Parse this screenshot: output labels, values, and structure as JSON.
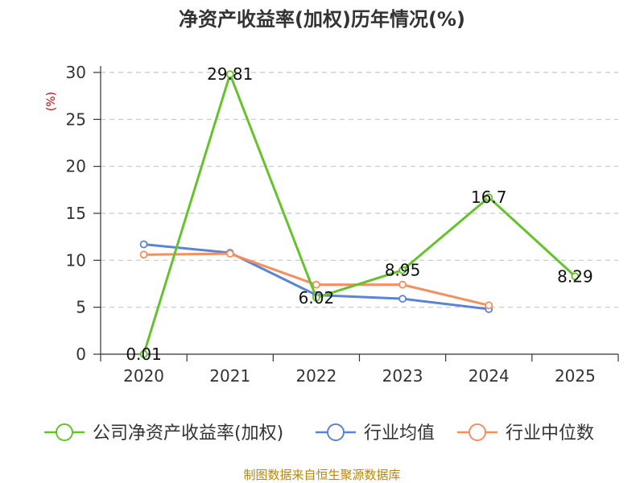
{
  "chart_data": {
    "type": "line",
    "title": "净资产收益率(加权)历年情况(%)",
    "ylabel": "(%)",
    "xlabel": "",
    "categories": [
      "2020",
      "2021",
      "2022",
      "2023",
      "2024",
      "2025"
    ],
    "ylim": [
      0,
      30
    ],
    "yticks": [
      0,
      5,
      10,
      15,
      20,
      25,
      30
    ],
    "grid": true,
    "legend_position": "bottom",
    "series": [
      {
        "name": "公司净资产收益率(加权)",
        "color": "#66c22c",
        "values": [
          0.01,
          29.81,
          6.02,
          8.95,
          16.7,
          8.29
        ],
        "labels": [
          "0.01",
          "29.81",
          "6.02",
          "8.95",
          "16.7",
          "8.29"
        ]
      },
      {
        "name": "行业均值",
        "color": "#5b84d6",
        "values": [
          11.7,
          10.8,
          6.3,
          5.9,
          4.8,
          null
        ]
      },
      {
        "name": "行业中位数",
        "color": "#f49060",
        "values": [
          10.6,
          10.7,
          7.4,
          7.4,
          5.2,
          null
        ]
      }
    ],
    "source": "制图数据来自恒生聚源数据库"
  }
}
